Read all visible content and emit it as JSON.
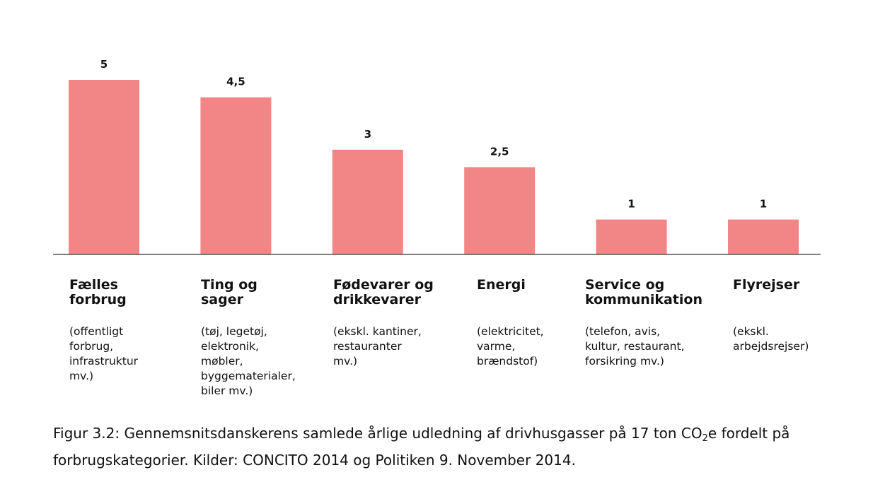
{
  "chart_data": {
    "type": "bar",
    "categories": [
      "Fælles forbrug",
      "Ting og sager",
      "Fødevarer og drikkevarer",
      "Energi",
      "Service og kommunikation",
      "Flyrejser"
    ],
    "values": [
      5,
      4.5,
      3,
      2.5,
      1,
      1
    ],
    "value_labels": [
      "5",
      "4,5",
      "3",
      "2,5",
      "1",
      "1"
    ],
    "ylim": [
      0,
      5
    ],
    "grid": false,
    "legend": "none",
    "colors": {
      "bar": "#F28585",
      "axis": "#555555",
      "text": "#111111"
    }
  },
  "categories_text": [
    {
      "title": "Fælles\nforbrug",
      "desc": "(offentligt\nforbrug,\ninfrastruktur\nmv.)"
    },
    {
      "title": "Ting og\nsager",
      "desc": "(tøj, legetøj,\nelektronik,\nmøbler,\nbyggematerialer,\nbiler mv.)"
    },
    {
      "title": "Fødevarer og\ndrikkevarer",
      "desc": "(ekskl. kantiner,\nrestauranter\nmv.)"
    },
    {
      "title": "Energi",
      "desc": "(elektricitet,\nvarme,\nbrændstof)"
    },
    {
      "title": "Service og\nkommunikation",
      "desc": "(telefon, avis,\nkultur, restaurant,\nforsikring mv.)"
    },
    {
      "title": "Flyrejser",
      "desc": "(ekskl.\narbejdsrejser)"
    }
  ],
  "caption": {
    "part1": "Figur 3.2: Gennemsnitsdanskerens samlede årlige udledning af drivhusgasser på 17 ton CO",
    "subscript": "2",
    "part2": "e fordelt på forbrugskategorier. Kilder: CONCITO 2014 og Politiken 9. November 2014."
  }
}
